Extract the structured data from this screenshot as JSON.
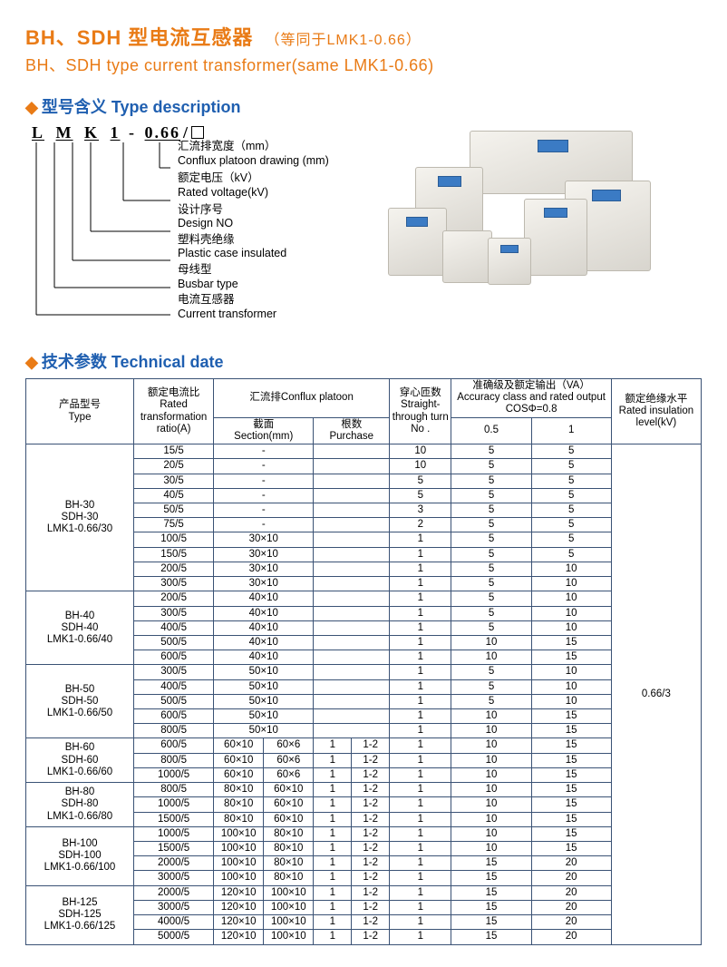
{
  "title": {
    "cn_main": "BH、SDH 型电流互感器",
    "cn_sub": "（等同于LMK1-0.66）",
    "en": "BH、SDH type current transformer(same LMK1-0.66)"
  },
  "sections": {
    "type_desc": "型号含义 Type description",
    "tech_data": "技术参数 Technical date"
  },
  "model_code": {
    "parts": [
      "L",
      "M",
      "K",
      "1",
      "-",
      "0.66",
      "/"
    ],
    "branches": [
      {
        "cn": "汇流排宽度（mm）",
        "en": "Conflux platoon drawing (mm)"
      },
      {
        "cn": "额定电压（kV）",
        "en": "Rated voltage(kV)"
      },
      {
        "cn": "设计序号",
        "en": "Design NO"
      },
      {
        "cn": "塑料壳绝缘",
        "en": "Plastic case insulated"
      },
      {
        "cn": "母线型",
        "en": "Busbar type"
      },
      {
        "cn": "电流互感器",
        "en": "Current transformer"
      }
    ]
  },
  "table": {
    "headers": {
      "type": {
        "cn": "产品型号",
        "en": "Type"
      },
      "ratio": {
        "cn": "额定电流比",
        "en": "Rated transformation ratio(A)"
      },
      "conflux": {
        "cn_en": "汇流排Conflux platoon",
        "section": {
          "cn": "截面",
          "en": "Section(mm)"
        },
        "purchase": {
          "cn": "根数",
          "en": "Purchase"
        }
      },
      "turns": {
        "cn": "穿心匝数",
        "en": "Straight-through turn No ."
      },
      "accuracy": {
        "cn": "准确级及额定输出（VA）",
        "en": "Accuracy class and rated output COSΦ=0.8",
        "c1": "0.5",
        "c2": "1"
      },
      "insul": {
        "cn": "额定绝缘水平",
        "en": "Rated insulation level(kV)",
        "value": "0.66/3"
      }
    },
    "groups": [
      {
        "type": [
          "BH-30",
          "SDH-30",
          "LMK1-0.66/30"
        ],
        "rows": [
          {
            "ratio": "15/5",
            "sec": [
              "-"
            ],
            "pur": [
              "",
              ""
            ],
            "turn": "10",
            "a05": "5",
            "a1": "5"
          },
          {
            "ratio": "20/5",
            "sec": [
              "-"
            ],
            "pur": [
              "",
              ""
            ],
            "turn": "10",
            "a05": "5",
            "a1": "5"
          },
          {
            "ratio": "30/5",
            "sec": [
              "-"
            ],
            "pur": [
              "",
              ""
            ],
            "turn": "5",
            "a05": "5",
            "a1": "5"
          },
          {
            "ratio": "40/5",
            "sec": [
              "-"
            ],
            "pur": [
              "",
              ""
            ],
            "turn": "5",
            "a05": "5",
            "a1": "5"
          },
          {
            "ratio": "50/5",
            "sec": [
              "-"
            ],
            "pur": [
              "",
              ""
            ],
            "turn": "3",
            "a05": "5",
            "a1": "5"
          },
          {
            "ratio": "75/5",
            "sec": [
              "-"
            ],
            "pur": [
              "",
              ""
            ],
            "turn": "2",
            "a05": "5",
            "a1": "5"
          },
          {
            "ratio": "100/5",
            "sec": [
              "30×10"
            ],
            "pur": [
              "",
              ""
            ],
            "turn": "1",
            "a05": "5",
            "a1": "5"
          },
          {
            "ratio": "150/5",
            "sec": [
              "30×10"
            ],
            "pur": [
              "",
              ""
            ],
            "turn": "1",
            "a05": "5",
            "a1": "5"
          },
          {
            "ratio": "200/5",
            "sec": [
              "30×10"
            ],
            "pur": [
              "",
              ""
            ],
            "turn": "1",
            "a05": "5",
            "a1": "10"
          },
          {
            "ratio": "300/5",
            "sec": [
              "30×10"
            ],
            "pur": [
              "",
              ""
            ],
            "turn": "1",
            "a05": "5",
            "a1": "10"
          }
        ]
      },
      {
        "type": [
          "BH-40",
          "SDH-40",
          "LMK1-0.66/40"
        ],
        "rows": [
          {
            "ratio": "200/5",
            "sec": [
              "40×10"
            ],
            "pur": [
              "",
              ""
            ],
            "turn": "1",
            "a05": "5",
            "a1": "10"
          },
          {
            "ratio": "300/5",
            "sec": [
              "40×10"
            ],
            "pur": [
              "",
              ""
            ],
            "turn": "1",
            "a05": "5",
            "a1": "10"
          },
          {
            "ratio": "400/5",
            "sec": [
              "40×10"
            ],
            "pur": [
              "",
              ""
            ],
            "turn": "1",
            "a05": "5",
            "a1": "10"
          },
          {
            "ratio": "500/5",
            "sec": [
              "40×10"
            ],
            "pur": [
              "",
              ""
            ],
            "turn": "1",
            "a05": "10",
            "a1": "15"
          },
          {
            "ratio": "600/5",
            "sec": [
              "40×10"
            ],
            "pur": [
              "",
              ""
            ],
            "turn": "1",
            "a05": "10",
            "a1": "15"
          }
        ]
      },
      {
        "type": [
          "BH-50",
          "SDH-50",
          "LMK1-0.66/50"
        ],
        "rows": [
          {
            "ratio": "300/5",
            "sec": [
              "50×10"
            ],
            "pur": [
              "",
              ""
            ],
            "turn": "1",
            "a05": "5",
            "a1": "10"
          },
          {
            "ratio": "400/5",
            "sec": [
              "50×10"
            ],
            "pur": [
              "",
              ""
            ],
            "turn": "1",
            "a05": "5",
            "a1": "10"
          },
          {
            "ratio": "500/5",
            "sec": [
              "50×10"
            ],
            "pur": [
              "",
              ""
            ],
            "turn": "1",
            "a05": "5",
            "a1": "10"
          },
          {
            "ratio": "600/5",
            "sec": [
              "50×10"
            ],
            "pur": [
              "",
              ""
            ],
            "turn": "1",
            "a05": "10",
            "a1": "15"
          },
          {
            "ratio": "800/5",
            "sec": [
              "50×10"
            ],
            "pur": [
              "",
              ""
            ],
            "turn": "1",
            "a05": "10",
            "a1": "15"
          }
        ]
      },
      {
        "type": [
          "BH-60",
          "SDH-60",
          "LMK1-0.66/60"
        ],
        "rows": [
          {
            "ratio": "600/5",
            "sec": [
              "60×10",
              "60×6"
            ],
            "pur": [
              "1",
              "1-2"
            ],
            "turn": "1",
            "a05": "10",
            "a1": "15"
          },
          {
            "ratio": "800/5",
            "sec": [
              "60×10",
              "60×6"
            ],
            "pur": [
              "1",
              "1-2"
            ],
            "turn": "1",
            "a05": "10",
            "a1": "15"
          },
          {
            "ratio": "1000/5",
            "sec": [
              "60×10",
              "60×6"
            ],
            "pur": [
              "1",
              "1-2"
            ],
            "turn": "1",
            "a05": "10",
            "a1": "15"
          }
        ]
      },
      {
        "type": [
          "BH-80",
          "SDH-80",
          "LMK1-0.66/80"
        ],
        "rows": [
          {
            "ratio": "800/5",
            "sec": [
              "80×10",
              "60×10"
            ],
            "pur": [
              "1",
              "1-2"
            ],
            "turn": "1",
            "a05": "10",
            "a1": "15"
          },
          {
            "ratio": "1000/5",
            "sec": [
              "80×10",
              "60×10"
            ],
            "pur": [
              "1",
              "1-2"
            ],
            "turn": "1",
            "a05": "10",
            "a1": "15"
          },
          {
            "ratio": "1500/5",
            "sec": [
              "80×10",
              "60×10"
            ],
            "pur": [
              "1",
              "1-2"
            ],
            "turn": "1",
            "a05": "10",
            "a1": "15"
          }
        ]
      },
      {
        "type": [
          "BH-100",
          "SDH-100",
          "LMK1-0.66/100"
        ],
        "rows": [
          {
            "ratio": "1000/5",
            "sec": [
              "100×10",
              "80×10"
            ],
            "pur": [
              "1",
              "1-2"
            ],
            "turn": "1",
            "a05": "10",
            "a1": "15"
          },
          {
            "ratio": "1500/5",
            "sec": [
              "100×10",
              "80×10"
            ],
            "pur": [
              "1",
              "1-2"
            ],
            "turn": "1",
            "a05": "10",
            "a1": "15"
          },
          {
            "ratio": "2000/5",
            "sec": [
              "100×10",
              "80×10"
            ],
            "pur": [
              "1",
              "1-2"
            ],
            "turn": "1",
            "a05": "15",
            "a1": "20"
          },
          {
            "ratio": "3000/5",
            "sec": [
              "100×10",
              "80×10"
            ],
            "pur": [
              "1",
              "1-2"
            ],
            "turn": "1",
            "a05": "15",
            "a1": "20"
          }
        ]
      },
      {
        "type": [
          "BH-125",
          "SDH-125",
          "LMK1-0.66/125"
        ],
        "rows": [
          {
            "ratio": "2000/5",
            "sec": [
              "120×10",
              "100×10"
            ],
            "pur": [
              "1",
              "1-2"
            ],
            "turn": "1",
            "a05": "15",
            "a1": "20"
          },
          {
            "ratio": "3000/5",
            "sec": [
              "120×10",
              "100×10"
            ],
            "pur": [
              "1",
              "1-2"
            ],
            "turn": "1",
            "a05": "15",
            "a1": "20"
          },
          {
            "ratio": "4000/5",
            "sec": [
              "120×10",
              "100×10"
            ],
            "pur": [
              "1",
              "1-2"
            ],
            "turn": "1",
            "a05": "15",
            "a1": "20"
          },
          {
            "ratio": "5000/5",
            "sec": [
              "120×10",
              "100×10"
            ],
            "pur": [
              "1",
              "1-2"
            ],
            "turn": "1",
            "a05": "15",
            "a1": "20"
          }
        ]
      }
    ]
  },
  "colors": {
    "orange": "#e97b16",
    "blue": "#1f5fb0",
    "border": "#3a5275"
  }
}
